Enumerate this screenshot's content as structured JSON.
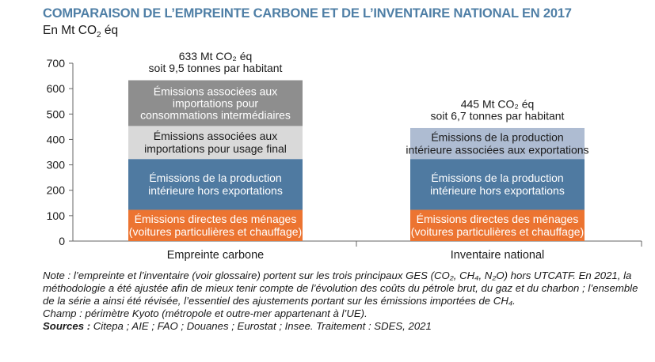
{
  "title": "COMPARAISON DE L’EMPREINTE CARBONE ET DE L’INVENTAIRE NATIONAL EN 2017",
  "subtitle_unit": "En Mt CO",
  "subtitle_sub": "2",
  "subtitle_suffix": " éq",
  "colors": {
    "title": "#4f7fa6",
    "direct": "#ec7431",
    "production": "#4f7aa1",
    "final_imports": "#d9d9d9",
    "intermediate_imports": "#8e8e8e",
    "exports": "#aebcd2"
  },
  "chart_data": {
    "type": "bar",
    "stacked": true,
    "ylim": [
      0,
      700
    ],
    "yticks": [
      0,
      100,
      200,
      300,
      400,
      500,
      600,
      700
    ],
    "grid": false,
    "categories": [
      "Empreinte carbone",
      "Inventaire national"
    ],
    "bars": [
      {
        "category": "Empreinte carbone",
        "total_label_lines": [
          "633 Mt CO₂ éq",
          "soit 9,5 tonnes par habitant"
        ],
        "segments": [
          {
            "value": 123,
            "color_key": "direct",
            "label_lines": [
              "Émissions directes des ménages",
              "(voitures particulières et chauffage)"
            ]
          },
          {
            "value": 200,
            "color_key": "production",
            "label_lines": [
              "Émissions de la production",
              "intérieure hors exportations"
            ]
          },
          {
            "value": 130,
            "color_key": "final_imports",
            "label_lines": [
              "Émissions associées aux",
              "importations pour usage final"
            ]
          },
          {
            "value": 180,
            "color_key": "intermediate_imports",
            "label_lines": [
              "Émissions associées aux",
              "importations pour",
              "consommations intermédiaires"
            ]
          }
        ]
      },
      {
        "category": "Inventaire national",
        "total_label_lines": [
          "445 Mt CO₂ éq",
          "soit 6,7 tonnes par habitant"
        ],
        "segments": [
          {
            "value": 123,
            "color_key": "direct",
            "label_lines": [
              "Émissions directes des ménages",
              "(voitures particulières et chauffage)"
            ]
          },
          {
            "value": 200,
            "color_key": "production",
            "label_lines": [
              "Émissions de la production",
              "intérieure hors exportations"
            ]
          },
          {
            "value": 122,
            "color_key": "exports",
            "label_lines": [
              "Émissions de la production",
              "intérieure associées aux exportations"
            ]
          }
        ]
      }
    ]
  },
  "notes": {
    "line1": "Note : l’empreinte et l’inventaire (voir glossaire) portent sur les trois principaux GES (CO₂, CH₄, N₂O) hors UTCATF. En 2021, la méthodologie a été ajustée afin de mieux tenir compte de l’évolution des coûts du pétrole brut, du gaz et du charbon ; l’ensemble de la série a ainsi été révisée, l’essentiel des ajustements portant sur les émissions importées de CH₄.",
    "line2": "Champ : périmètre Kyoto (métropole et outre-mer appartenant à l’UE).",
    "sources_label": "Sources :",
    "sources_text": " Citepa ; AIE ; FAO ; Douanes ; Eurostat ; Insee. Traitement : SDES, 2021"
  }
}
